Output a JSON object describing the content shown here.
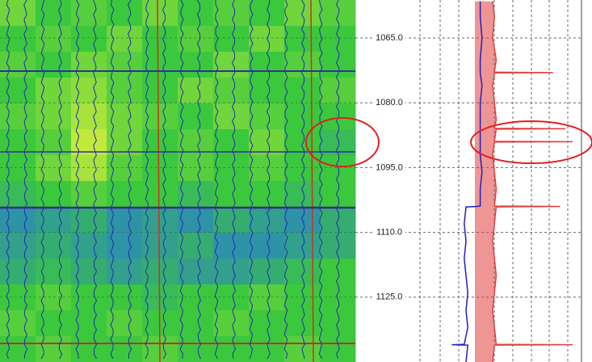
{
  "chart_data": {
    "type": "well-log",
    "ylim": [
      1056.2,
      1140
    ],
    "yticks": [
      {
        "value": 1065,
        "label": "1065.0"
      },
      {
        "value": 1080,
        "label": "1080.0"
      },
      {
        "value": 1095,
        "label": "1095.0"
      },
      {
        "value": 1110,
        "label": "1110.0"
      },
      {
        "value": 1125,
        "label": "1125.0"
      }
    ],
    "grid": true,
    "heatmap": {
      "z": [
        [
          0.6,
          0.5,
          0.55,
          0.5,
          0.6,
          0.5,
          0.55,
          0.5,
          0.6,
          0.55
        ],
        [
          0.5,
          0.55,
          0.5,
          0.6,
          0.5,
          0.55,
          0.5,
          0.6,
          0.5,
          0.5
        ],
        [
          0.55,
          0.5,
          0.6,
          0.55,
          0.5,
          0.5,
          0.6,
          0.5,
          0.55,
          0.5
        ],
        [
          0.5,
          0.6,
          0.65,
          0.55,
          0.5,
          0.6,
          0.55,
          0.5,
          0.5,
          0.55
        ],
        [
          0.55,
          0.6,
          0.7,
          0.6,
          0.55,
          0.5,
          0.6,
          0.55,
          0.5,
          0.5
        ],
        [
          0.5,
          0.55,
          0.75,
          0.6,
          0.5,
          0.55,
          0.5,
          0.6,
          0.5,
          0.45
        ],
        [
          0.5,
          0.6,
          0.7,
          0.55,
          0.5,
          0.55,
          0.5,
          0.55,
          0.5,
          0.5
        ],
        [
          0.45,
          0.5,
          0.55,
          0.5,
          0.5,
          0.45,
          0.5,
          0.5,
          0.45,
          0.5
        ],
        [
          0.3,
          0.35,
          0.4,
          0.3,
          0.35,
          0.3,
          0.4,
          0.35,
          0.3,
          0.4
        ],
        [
          0.35,
          0.4,
          0.35,
          0.3,
          0.35,
          0.4,
          0.3,
          0.3,
          0.35,
          0.4
        ],
        [
          0.4,
          0.45,
          0.4,
          0.35,
          0.4,
          0.35,
          0.35,
          0.4,
          0.45,
          0.5
        ],
        [
          0.5,
          0.55,
          0.5,
          0.5,
          0.45,
          0.5,
          0.5,
          0.55,
          0.5,
          0.5
        ],
        [
          0.55,
          0.5,
          0.5,
          0.55,
          0.5,
          0.5,
          0.55,
          0.5,
          0.5,
          0.5
        ],
        [
          0.5,
          0.55,
          0.5,
          0.5,
          0.55,
          0.5,
          0.5,
          0.5,
          0.55,
          0.5
        ]
      ]
    },
    "xlim": [
      0,
      100
    ],
    "x": [
      1056.5,
      1060,
      1065,
      1070,
      1072.9,
      1073,
      1073.1,
      1076,
      1080,
      1084,
      1085.9,
      1086,
      1086.1,
      1088.9,
      1089,
      1089.1,
      1092,
      1096,
      1100,
      1103.9,
      1104,
      1104.1,
      1108,
      1112,
      1116,
      1120,
      1124,
      1128,
      1132,
      1135.9,
      1136,
      1136.1,
      1140
    ],
    "series": [
      {
        "color": "#e04040",
        "values": [
          50,
          51,
          50,
          52,
          51,
          84,
          51,
          50,
          51,
          52,
          51,
          91,
          52,
          51,
          95,
          51,
          50,
          51,
          52,
          51,
          88,
          52,
          51,
          50,
          51,
          52,
          51,
          50,
          51,
          52,
          95,
          51,
          50
        ]
      },
      {
        "color": "#2020c0",
        "values": [
          43,
          43,
          44,
          43,
          43,
          43,
          43,
          44,
          43,
          43,
          43,
          43,
          43,
          43,
          43,
          43,
          43,
          44,
          43,
          43,
          41,
          35,
          34,
          35,
          34,
          35,
          36,
          35,
          36,
          34,
          27,
          36,
          35
        ]
      }
    ]
  }
}
